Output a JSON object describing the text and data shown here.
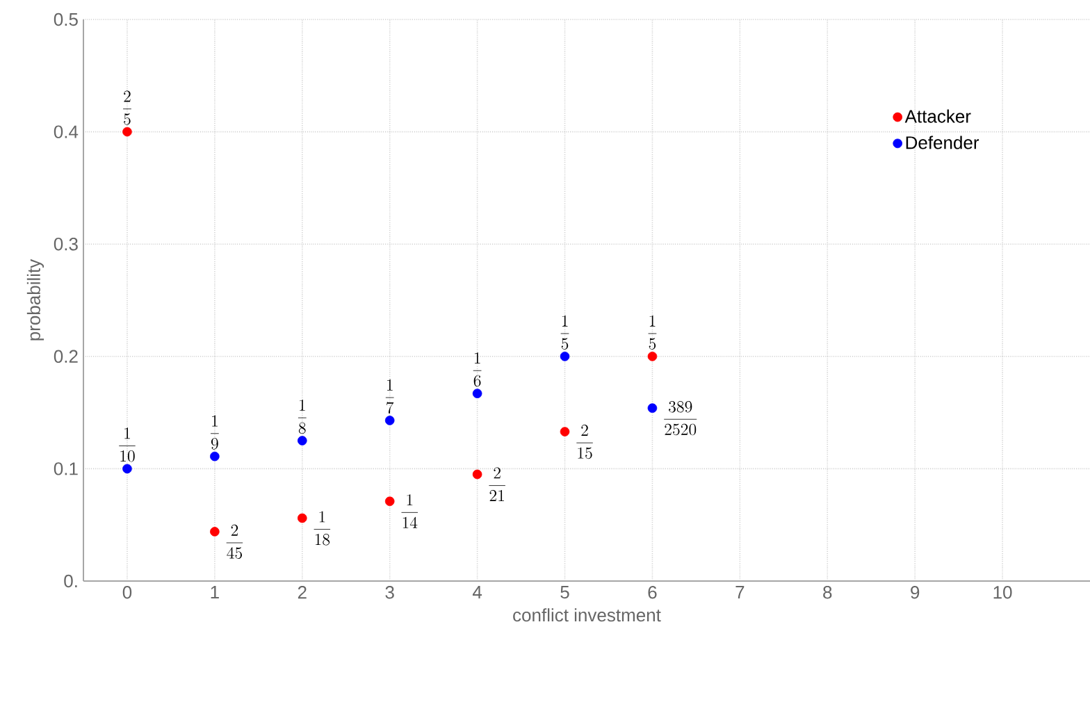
{
  "chart_data": {
    "type": "scatter",
    "xlabel": "conflict investment",
    "ylabel": "probability",
    "x": [
      0,
      1,
      2,
      3,
      4,
      5,
      6
    ],
    "series": [
      {
        "name": "Attacker",
        "color": "#ff0000",
        "values": [
          0.4,
          0.044,
          0.056,
          0.071,
          0.095,
          0.133,
          0.2
        ],
        "value_labels": [
          "\\frac{2}{5}",
          "\\frac{2}{45}",
          "\\frac{1}{18}",
          "\\frac{1}{14}",
          "\\frac{2}{21}",
          "\\frac{2}{15}",
          "\\frac{1}{5}"
        ]
      },
      {
        "name": "Defender",
        "color": "#0000ff",
        "values": [
          0.1,
          0.111,
          0.125,
          0.143,
          0.167,
          0.2,
          0.154
        ],
        "value_labels": [
          "\\frac{1}{10}",
          "\\frac{1}{9}",
          "\\frac{1}{8}",
          "\\frac{1}{7}",
          "\\frac{1}{6}",
          "\\frac{1}{5}",
          "\\frac{389}{2520}"
        ]
      }
    ],
    "xlim": [
      -0.5,
      11
    ],
    "ylim": [
      0,
      0.5
    ],
    "xticks": [
      0,
      1,
      2,
      3,
      4,
      5,
      6,
      7,
      8,
      9,
      10
    ],
    "yticks": [
      {
        "value": 0,
        "label": "0."
      },
      0.1,
      0.2,
      0.3,
      0.4,
      0.5
    ],
    "grid": true,
    "legend": "top right",
    "marker": "circle"
  }
}
